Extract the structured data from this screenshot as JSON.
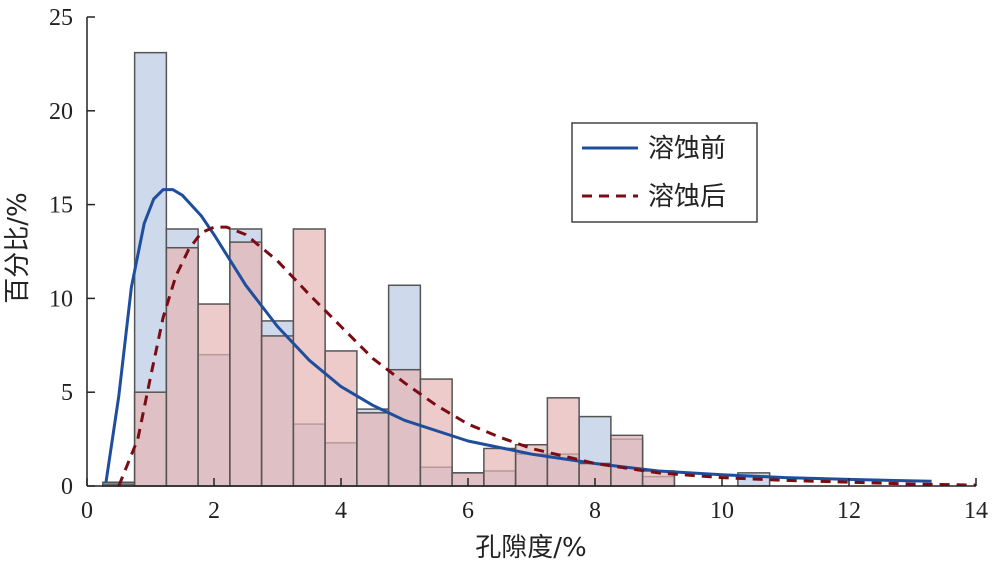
{
  "chart_data": {
    "type": "bar",
    "xlabel": "孔隙度/%",
    "ylabel": "百分比/%",
    "xlim": [
      0,
      14
    ],
    "ylim": [
      0,
      25
    ],
    "xticks": [
      0,
      2,
      4,
      6,
      8,
      10,
      12,
      14
    ],
    "yticks": [
      0,
      5,
      10,
      15,
      20,
      25
    ],
    "bin_width": 0.5,
    "grid": false,
    "legend_position": "top-right",
    "series": [
      {
        "name": "溶蚀前",
        "line_style": "solid",
        "line_color": "#1f4e9c",
        "bar_color": "#c9d5ea",
        "histogram": [
          {
            "x": 0.5,
            "value": 0.2
          },
          {
            "x": 1.0,
            "value": 23.1
          },
          {
            "x": 1.5,
            "value": 13.7
          },
          {
            "x": 2.0,
            "value": 7.0
          },
          {
            "x": 2.5,
            "value": 13.7
          },
          {
            "x": 3.0,
            "value": 8.8
          },
          {
            "x": 3.5,
            "value": 3.3
          },
          {
            "x": 4.0,
            "value": 2.3
          },
          {
            "x": 4.5,
            "value": 4.1
          },
          {
            "x": 5.0,
            "value": 10.7
          },
          {
            "x": 5.5,
            "value": 1.0
          },
          {
            "x": 6.0,
            "value": 0.7
          },
          {
            "x": 6.5,
            "value": 0.8
          },
          {
            "x": 7.0,
            "value": 1.7
          },
          {
            "x": 7.5,
            "value": 1.7
          },
          {
            "x": 8.0,
            "value": 3.7
          },
          {
            "x": 8.5,
            "value": 2.5
          },
          {
            "x": 9.0,
            "value": 0.5
          },
          {
            "x": 10.5,
            "value": 0.7
          }
        ],
        "fit_curve": [
          [
            0.3,
            0.2
          ],
          [
            0.5,
            4.8
          ],
          [
            0.7,
            10.6
          ],
          [
            0.9,
            14.0
          ],
          [
            1.05,
            15.3
          ],
          [
            1.2,
            15.8
          ],
          [
            1.35,
            15.8
          ],
          [
            1.5,
            15.5
          ],
          [
            1.8,
            14.4
          ],
          [
            2.0,
            13.4
          ],
          [
            2.5,
            10.7
          ],
          [
            3.0,
            8.5
          ],
          [
            3.5,
            6.7
          ],
          [
            4.0,
            5.3
          ],
          [
            4.5,
            4.3
          ],
          [
            5.0,
            3.5
          ],
          [
            6.0,
            2.4
          ],
          [
            7.0,
            1.7
          ],
          [
            8.0,
            1.2
          ],
          [
            9.0,
            0.8
          ],
          [
            10.0,
            0.6
          ],
          [
            11.0,
            0.45
          ],
          [
            12.0,
            0.35
          ],
          [
            13.3,
            0.25
          ]
        ]
      },
      {
        "name": "溶蚀后",
        "line_style": "dashed",
        "line_color": "#7a0c14",
        "bar_color": "#e6b5b5",
        "histogram": [
          {
            "x": 0.5,
            "value": 0.1
          },
          {
            "x": 1.0,
            "value": 5.0
          },
          {
            "x": 1.5,
            "value": 12.7
          },
          {
            "x": 2.0,
            "value": 9.7
          },
          {
            "x": 2.5,
            "value": 13.0
          },
          {
            "x": 3.0,
            "value": 8.0
          },
          {
            "x": 3.5,
            "value": 13.7
          },
          {
            "x": 4.0,
            "value": 7.2
          },
          {
            "x": 4.5,
            "value": 3.9
          },
          {
            "x": 5.0,
            "value": 6.2
          },
          {
            "x": 5.5,
            "value": 5.7
          },
          {
            "x": 6.0,
            "value": 0.7
          },
          {
            "x": 6.5,
            "value": 2.0
          },
          {
            "x": 7.0,
            "value": 2.2
          },
          {
            "x": 7.5,
            "value": 4.7
          },
          {
            "x": 8.0,
            "value": 1.2
          },
          {
            "x": 8.5,
            "value": 2.7
          },
          {
            "x": 9.0,
            "value": 0.8
          }
        ],
        "fit_curve": [
          [
            0.5,
            0.0
          ],
          [
            0.8,
            2.5
          ],
          [
            1.0,
            5.8
          ],
          [
            1.2,
            9.0
          ],
          [
            1.4,
            11.2
          ],
          [
            1.6,
            12.6
          ],
          [
            1.8,
            13.5
          ],
          [
            2.0,
            13.8
          ],
          [
            2.2,
            13.8
          ],
          [
            2.5,
            13.4
          ],
          [
            3.0,
            12.0
          ],
          [
            3.5,
            10.2
          ],
          [
            4.0,
            8.5
          ],
          [
            4.5,
            6.8
          ],
          [
            5.0,
            5.5
          ],
          [
            5.5,
            4.3
          ],
          [
            6.0,
            3.3
          ],
          [
            6.5,
            2.6
          ],
          [
            7.0,
            2.0
          ],
          [
            8.0,
            1.2
          ],
          [
            9.0,
            0.7
          ],
          [
            10.0,
            0.45
          ],
          [
            11.0,
            0.3
          ],
          [
            12.0,
            0.2
          ],
          [
            13.0,
            0.1
          ],
          [
            14.0,
            0.05
          ]
        ]
      }
    ]
  }
}
